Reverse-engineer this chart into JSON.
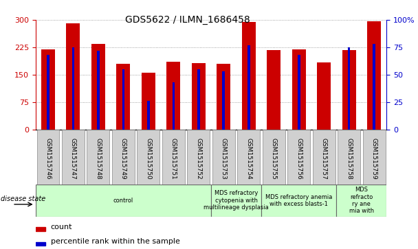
{
  "title": "GDS5622 / ILMN_1686458",
  "samples": [
    "GSM1515746",
    "GSM1515747",
    "GSM1515748",
    "GSM1515749",
    "GSM1515750",
    "GSM1515751",
    "GSM1515752",
    "GSM1515753",
    "GSM1515754",
    "GSM1515755",
    "GSM1515756",
    "GSM1515757",
    "GSM1515758",
    "GSM1515759"
  ],
  "counts": [
    220,
    290,
    235,
    180,
    155,
    185,
    182,
    180,
    295,
    218,
    220,
    183,
    218,
    297
  ],
  "percentile_ranks": [
    68,
    75,
    72,
    55,
    26,
    43,
    55,
    53,
    77,
    0,
    68,
    0,
    75,
    78
  ],
  "left_ylim": [
    0,
    300
  ],
  "right_ylim": [
    0,
    100
  ],
  "left_yticks": [
    0,
    75,
    150,
    225,
    300
  ],
  "right_yticks": [
    0,
    25,
    50,
    75,
    100
  ],
  "right_yticklabels": [
    "0",
    "25",
    "50",
    "75",
    "100%"
  ],
  "bar_color": "#cc0000",
  "percentile_color": "#0000cc",
  "bar_width": 0.55,
  "disease_groups": [
    {
      "label": "control",
      "start": 0,
      "end": 7
    },
    {
      "label": "MDS refractory\ncytopenia with\nmultilineage dysplasia",
      "start": 7,
      "end": 9
    },
    {
      "label": "MDS refractory anemia\nwith excess blasts-1",
      "start": 9,
      "end": 12
    },
    {
      "label": "MDS\nrefracto\nry ane\nmia with",
      "start": 12,
      "end": 14
    }
  ],
  "disease_state_label": "disease state",
  "legend_count_label": "count",
  "legend_percentile_label": "percentile rank within the sample",
  "grid_color": "#888888",
  "bg_color": "#ffffff",
  "tick_label_color_left": "#cc0000",
  "tick_label_color_right": "#0000cc",
  "plot_bg": "#ffffff",
  "tick_box_color": "#d0d0d0",
  "disease_box_color": "#ccffcc"
}
